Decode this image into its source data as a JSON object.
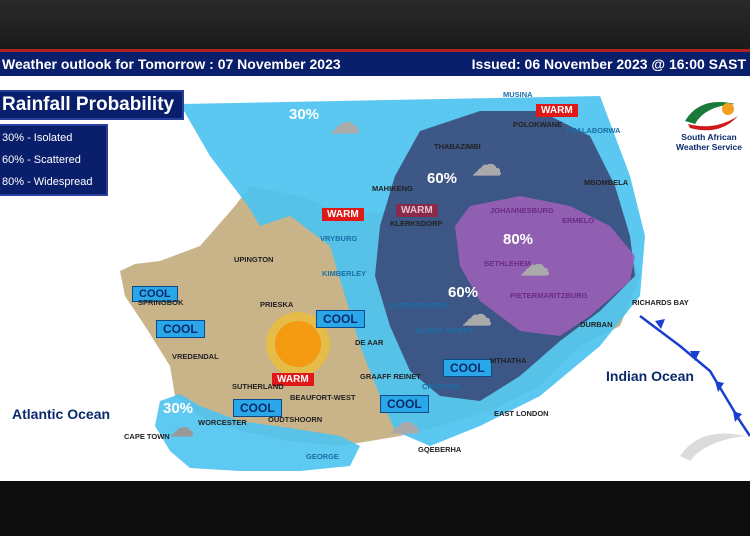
{
  "header": {
    "title": "Weather outlook for Tomorrow : 07 November 2023",
    "issued": "Issued: 06 November 2023 @ 16:00   SAST"
  },
  "legend": {
    "title": "Rainfall Probability",
    "items": [
      "30% - Isolated",
      "60% - Scattered",
      "80% - Widespread"
    ]
  },
  "logo": {
    "line1": "South African",
    "line2": "Weather Service"
  },
  "oceans": {
    "atlantic": "Atlantic Ocean",
    "indian": "Indian Ocean"
  },
  "probabilities": {
    "north": "30%",
    "central": "60%",
    "east": "80%",
    "south": "60%",
    "cape": "30%"
  },
  "colors": {
    "p30": "#4cc3ef",
    "p60": "#3a4a7a",
    "p80": "#a060b8",
    "land": "#c9b48a",
    "header": "#0a1f6b",
    "cool": "#29a7e8",
    "warm": "#e01818"
  },
  "tags": {
    "cool": "COOL",
    "warm": "WARM"
  },
  "cities": {
    "musina": "MUSINA",
    "polokwane": "POLOKWANE",
    "phalaborwa": "PHALABORWA",
    "thabazimbi": "THABAZIMBI",
    "mbombela": "MBOMBELA",
    "mahikeng": "MAHIKENG",
    "klerksdorp": "KLERKSDORP",
    "johannesburg": "JOHANNESBURG",
    "ermelo": "ERMELO",
    "vryburg": "VRYBURG",
    "upington": "UPINGTON",
    "kimberley": "KIMBERLEY",
    "bethlehem": "BETHLEHEM",
    "springbok": "SPRINGBOK",
    "prieska": "PRIESKA",
    "bloemfontein": "BLOEMFONTEIN",
    "pietermaritzburg": "PIETERMARITZBURG",
    "richards_bay": "RICHARDS BAY",
    "durban": "DURBAN",
    "de_aar": "DE AAR",
    "aliwal_north": "ALIWAL NORTH",
    "vredendal": "VREDENDAL",
    "mthatha": "MTHATHA",
    "graaff_reinet": "GRAAFF REINET",
    "sutherland": "SUTHERLAND",
    "beaufort_west": "BEAUFORT-WEST",
    "cradock": "CRADOCK",
    "worcester": "WORCESTER",
    "oudtshoorn": "OUDTSHOORN",
    "cape_town": "CAPE TOWN",
    "east_london": "EAST LONDON",
    "george": "GEORGE",
    "gqeberha": "GQEBERHA"
  },
  "weather_icons": [
    "thunderstorm-cloud-icon",
    "sun-icon"
  ]
}
